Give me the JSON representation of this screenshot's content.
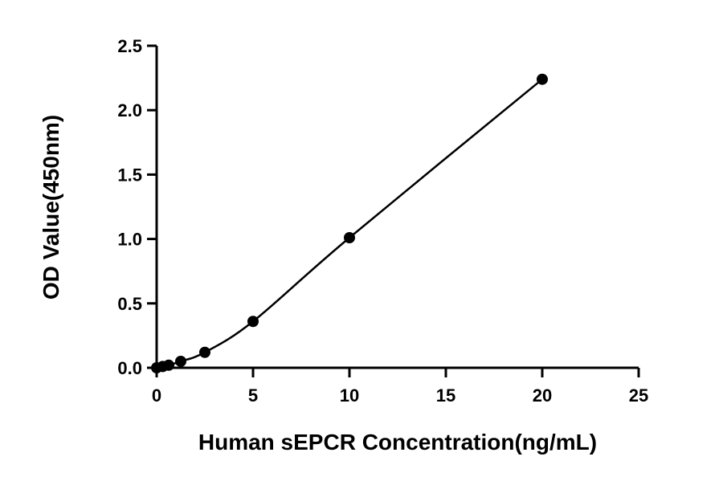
{
  "chart_data": {
    "type": "scatter",
    "title": "",
    "xlabel": "Human sEPCR Concentration(ng/mL)",
    "ylabel": "OD Value(450nm)",
    "xlim": [
      0,
      25
    ],
    "ylim": [
      0,
      2.5
    ],
    "x_ticks": [
      "0",
      "5",
      "10",
      "15",
      "20",
      "25"
    ],
    "y_ticks": [
      "0.0",
      "0.5",
      "1.0",
      "1.5",
      "2.0",
      "2.5"
    ],
    "grid": false,
    "legend": "none",
    "series": [
      {
        "x": [
          0,
          0.3125,
          0.625,
          1.25,
          2.5,
          5,
          10,
          20
        ],
        "y": [
          0.0,
          0.01,
          0.02,
          0.05,
          0.12,
          0.36,
          1.01,
          2.24
        ]
      }
    ],
    "fit_curve": true
  }
}
